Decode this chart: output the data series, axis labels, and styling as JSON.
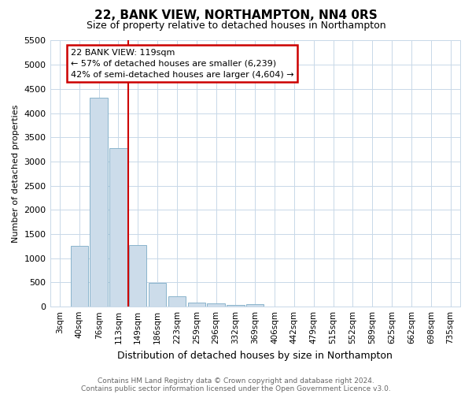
{
  "title": "22, BANK VIEW, NORTHAMPTON, NN4 0RS",
  "subtitle": "Size of property relative to detached houses in Northampton",
  "xlabel": "Distribution of detached houses by size in Northampton",
  "ylabel": "Number of detached properties",
  "footnote1": "Contains HM Land Registry data © Crown copyright and database right 2024.",
  "footnote2": "Contains public sector information licensed under the Open Government Licence v3.0.",
  "bar_labels": [
    "3sqm",
    "40sqm",
    "76sqm",
    "113sqm",
    "149sqm",
    "186sqm",
    "223sqm",
    "259sqm",
    "296sqm",
    "332sqm",
    "369sqm",
    "406sqm",
    "442sqm",
    "479sqm",
    "515sqm",
    "552sqm",
    "589sqm",
    "625sqm",
    "662sqm",
    "698sqm",
    "735sqm"
  ],
  "bar_values": [
    0,
    1260,
    4320,
    3270,
    1280,
    490,
    220,
    90,
    60,
    40,
    50,
    0,
    0,
    0,
    0,
    0,
    0,
    0,
    0,
    0,
    0
  ],
  "bar_color": "#ccdcea",
  "bar_edgecolor": "#8ab4cc",
  "ylim": [
    0,
    5500
  ],
  "yticks": [
    0,
    500,
    1000,
    1500,
    2000,
    2500,
    3000,
    3500,
    4000,
    4500,
    5000,
    5500
  ],
  "red_line_index": 3.5,
  "annotation_text": "22 BANK VIEW: 119sqm\n← 57% of detached houses are smaller (6,239)\n42% of semi-detached houses are larger (4,604) →",
  "annotation_box_facecolor": "#ffffff",
  "annotation_box_edgecolor": "#cc0000",
  "red_line_color": "#cc0000",
  "background_color": "#ffffff",
  "grid_color": "#c8d8e8",
  "title_fontsize": 11,
  "subtitle_fontsize": 9,
  "ylabel_fontsize": 8,
  "xlabel_fontsize": 9,
  "tick_fontsize": 8,
  "xtick_fontsize": 7.5,
  "footnote_fontsize": 6.5,
  "footnote_color": "#666666"
}
